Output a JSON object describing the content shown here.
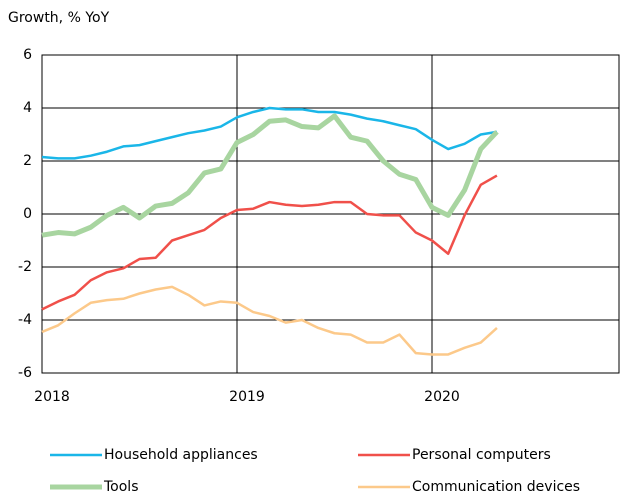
{
  "chart_data": {
    "type": "line",
    "y_axis_label": "Growth, % YoY",
    "x": [
      2018,
      2018.083,
      2018.167,
      2018.25,
      2018.333,
      2018.417,
      2018.5,
      2018.583,
      2018.667,
      2018.75,
      2018.833,
      2018.917,
      2019,
      2019.083,
      2019.167,
      2019.25,
      2019.333,
      2019.417,
      2019.5,
      2019.583,
      2019.667,
      2019.75,
      2019.833,
      2019.917,
      2020,
      2020.083,
      2020.167,
      2020.25,
      2020.333
    ],
    "series": [
      {
        "name": "Household appliances",
        "color": "#1ab6e8",
        "width": 2.5,
        "values": [
          2.15,
          2.1,
          2.1,
          2.2,
          2.35,
          2.55,
          2.6,
          2.75,
          2.9,
          3.05,
          3.15,
          3.3,
          3.65,
          3.85,
          4.0,
          3.95,
          3.95,
          3.85,
          3.85,
          3.75,
          3.6,
          3.5,
          3.35,
          3.2,
          2.8,
          2.45,
          2.65,
          3.0,
          3.1
        ]
      },
      {
        "name": "Personal computers",
        "color": "#f0504a",
        "width": 2.5,
        "values": [
          -3.6,
          -3.3,
          -3.05,
          -2.5,
          -2.2,
          -2.05,
          -1.7,
          -1.65,
          -1.0,
          -0.8,
          -0.6,
          -0.15,
          0.15,
          0.2,
          0.45,
          0.35,
          0.3,
          0.35,
          0.45,
          0.45,
          0.0,
          -0.05,
          -0.05,
          -0.7,
          -1.0,
          -1.5,
          -0.05,
          1.1,
          1.45
        ]
      },
      {
        "name": "Tools",
        "color": "#a8d5a0",
        "width": 5,
        "values": [
          -0.8,
          -0.7,
          -0.75,
          -0.5,
          -0.05,
          0.25,
          -0.15,
          0.3,
          0.4,
          0.8,
          1.55,
          1.7,
          2.7,
          3.0,
          3.5,
          3.55,
          3.3,
          3.25,
          3.7,
          2.9,
          2.75,
          2.0,
          1.5,
          1.3,
          0.25,
          -0.05,
          0.9,
          2.45,
          3.1
        ]
      },
      {
        "name": "Communication devices",
        "color": "#fcc98a",
        "width": 2.5,
        "values": [
          -4.45,
          -4.2,
          -3.75,
          -3.35,
          -3.25,
          -3.2,
          -3.0,
          -2.85,
          -2.75,
          -3.05,
          -3.45,
          -3.3,
          -3.35,
          -3.7,
          -3.85,
          -4.1,
          -4.0,
          -4.3,
          -4.5,
          -4.55,
          -4.85,
          -4.85,
          -4.55,
          -5.25,
          -5.3,
          -5.3,
          -5.05,
          -4.85,
          -4.3
        ]
      }
    ],
    "xlim": [
      2018,
      2021
    ],
    "xticks": [
      2018,
      2019,
      2020
    ],
    "ylim": [
      -6,
      6
    ],
    "yticks": [
      6,
      4,
      2,
      0,
      -2,
      -4,
      -6
    ],
    "grid": true
  }
}
